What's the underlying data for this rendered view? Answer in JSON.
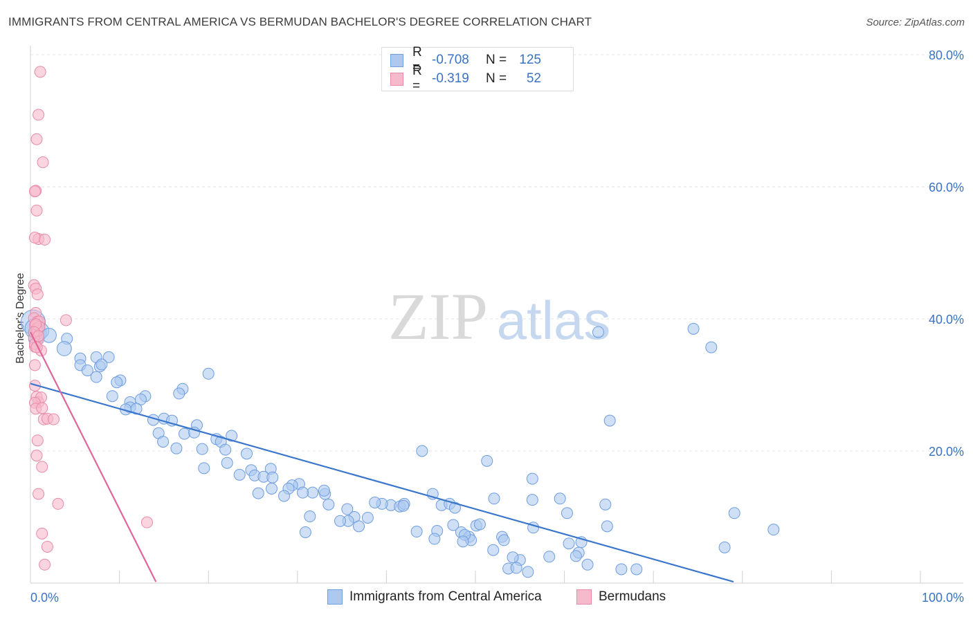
{
  "title": "IMMIGRANTS FROM CENTRAL AMERICA VS BERMUDAN BACHELOR'S DEGREE CORRELATION CHART",
  "source": "Source: ZipAtlas.com",
  "watermark": {
    "zip": "ZIP",
    "atlas": "atlas"
  },
  "legend": {
    "rows": [
      {
        "r_label": "R =",
        "r_value": "-0.708",
        "n_label": "N =",
        "n_value": "125",
        "fill": "#aec9f0",
        "stroke": "#6e9de0"
      },
      {
        "r_label": "R =",
        "r_value": "-0.319",
        "n_label": "N =",
        "n_value": "52",
        "fill": "#f7b9cc",
        "stroke": "#e88aa8"
      }
    ]
  },
  "bottom_legend": [
    {
      "label": "Immigrants from Central America",
      "fill": "#aec9f0",
      "stroke": "#6e9de0"
    },
    {
      "label": "Bermudans",
      "fill": "#f7b9cc",
      "stroke": "#e88aa8"
    }
  ],
  "chart_data": {
    "type": "scatter",
    "title": "IMMIGRANTS FROM CENTRAL AMERICA VS BERMUDAN BACHELOR'S DEGREE CORRELATION CHART",
    "xlabel": "",
    "ylabel": "Bachelor's Degree",
    "xlim": [
      0,
      100
    ],
    "ylim": [
      0,
      80
    ],
    "x_tick_labels": [
      "0.0%",
      "100.0%"
    ],
    "y_ticks": [
      20,
      40,
      60,
      80
    ],
    "y_tick_labels": [
      "20.0%",
      "40.0%",
      "60.0%",
      "80.0%"
    ],
    "grid": true,
    "series": [
      {
        "name": "Immigrants from Central America",
        "color": "#6e9de0",
        "fill": "#aec9f0",
        "trend": {
          "x": [
            0,
            79
          ],
          "y": [
            30.2,
            0.2
          ],
          "color": "#3a76cc"
        },
        "points": [
          [
            0.3,
            39.5,
            2.2
          ],
          [
            0.5,
            38.5,
            1.8
          ],
          [
            0.8,
            37.8,
            1.6
          ],
          [
            1.2,
            38.2,
            1.4
          ],
          [
            0.6,
            37.0,
            1.3
          ],
          [
            2.1,
            37.5,
            1.3
          ],
          [
            4.1,
            37.0,
            1.0
          ],
          [
            3.8,
            35.5,
            1.3
          ],
          [
            5.6,
            34.0,
            1.0
          ],
          [
            7.4,
            34.2,
            1.0
          ],
          [
            8.8,
            34.2,
            1.0
          ],
          [
            5.6,
            33.0,
            1.0
          ],
          [
            7.8,
            32.8,
            1.0
          ],
          [
            8.0,
            33.1,
            1.0
          ],
          [
            6.4,
            32.2,
            1.0
          ],
          [
            7.4,
            31.2,
            1.0
          ],
          [
            10.1,
            30.7,
            1.0
          ],
          [
            9.7,
            30.4,
            1.0
          ],
          [
            20.0,
            31.7,
            1.0
          ],
          [
            17.1,
            29.4,
            1.0
          ],
          [
            16.7,
            28.7,
            1.0
          ],
          [
            9.2,
            28.3,
            1.0
          ],
          [
            12.9,
            28.3,
            1.0
          ],
          [
            12.4,
            27.8,
            1.0
          ],
          [
            11.2,
            27.4,
            1.0
          ],
          [
            11.2,
            26.6,
            1.0
          ],
          [
            10.7,
            26.3,
            1.0
          ],
          [
            11.9,
            26.4,
            1.0
          ],
          [
            15.0,
            24.9,
            1.0
          ],
          [
            15.9,
            24.6,
            1.0
          ],
          [
            13.8,
            24.7,
            1.0
          ],
          [
            18.7,
            23.9,
            1.0
          ],
          [
            14.4,
            22.7,
            1.0
          ],
          [
            17.3,
            22.6,
            1.0
          ],
          [
            18.4,
            22.8,
            1.0
          ],
          [
            22.6,
            22.3,
            1.0
          ],
          [
            20.9,
            21.8,
            1.0
          ],
          [
            21.4,
            21.4,
            1.0
          ],
          [
            14.9,
            21.4,
            1.0
          ],
          [
            16.4,
            20.4,
            1.0
          ],
          [
            19.3,
            20.3,
            1.0
          ],
          [
            21.9,
            20.2,
            1.0
          ],
          [
            24.3,
            19.6,
            1.0
          ],
          [
            22.1,
            18.2,
            1.0
          ],
          [
            19.5,
            17.4,
            1.0
          ],
          [
            27.0,
            17.3,
            1.0
          ],
          [
            24.8,
            17.1,
            1.0
          ],
          [
            25.2,
            16.3,
            1.0
          ],
          [
            23.5,
            16.4,
            1.0
          ],
          [
            26.2,
            16.1,
            1.0
          ],
          [
            27.2,
            16.0,
            1.0
          ],
          [
            30.2,
            15.0,
            1.0
          ],
          [
            29.4,
            14.8,
            1.0
          ],
          [
            27.1,
            14.3,
            1.0
          ],
          [
            29.0,
            14.3,
            1.0
          ],
          [
            25.6,
            13.6,
            1.0
          ],
          [
            31.7,
            13.7,
            1.0
          ],
          [
            30.6,
            13.7,
            1.0
          ],
          [
            33.1,
            13.5,
            1.0
          ],
          [
            33.0,
            14.0,
            1.0
          ],
          [
            28.5,
            13.2,
            1.0
          ],
          [
            33.5,
            11.9,
            1.0
          ],
          [
            35.6,
            11.2,
            1.0
          ],
          [
            36.4,
            10.0,
            1.0
          ],
          [
            35.7,
            9.4,
            1.0
          ],
          [
            34.8,
            9.4,
            1.0
          ],
          [
            37.9,
            9.9,
            1.0
          ],
          [
            36.9,
            8.6,
            1.0
          ],
          [
            31.4,
            10.1,
            1.0
          ],
          [
            30.9,
            7.7,
            1.0
          ],
          [
            40.5,
            11.8,
            1.0
          ],
          [
            39.5,
            12.0,
            1.0
          ],
          [
            38.7,
            12.2,
            1.0
          ],
          [
            41.5,
            11.6,
            1.0
          ],
          [
            42.0,
            12.0,
            1.0
          ],
          [
            41.9,
            11.7,
            1.0
          ],
          [
            45.2,
            13.5,
            1.0
          ],
          [
            46.2,
            11.8,
            1.0
          ],
          [
            47.1,
            12.0,
            1.0
          ],
          [
            44.0,
            20.0,
            1.0
          ],
          [
            47.5,
            8.8,
            1.0
          ],
          [
            48.4,
            7.7,
            1.0
          ],
          [
            49.3,
            7.0,
            1.0
          ],
          [
            50.1,
            8.7,
            1.0
          ],
          [
            49.5,
            6.5,
            1.0
          ],
          [
            47.7,
            11.4,
            1.0
          ],
          [
            43.4,
            7.8,
            1.0
          ],
          [
            45.7,
            7.9,
            1.0
          ],
          [
            48.8,
            7.3,
            1.0
          ],
          [
            45.4,
            6.7,
            1.0
          ],
          [
            48.6,
            6.3,
            1.0
          ],
          [
            52.1,
            12.8,
            1.0
          ],
          [
            50.5,
            8.9,
            1.0
          ],
          [
            53.0,
            7.0,
            1.0
          ],
          [
            53.2,
            6.5,
            1.0
          ],
          [
            52.0,
            5.0,
            1.0
          ],
          [
            56.4,
            12.6,
            1.0
          ],
          [
            56.5,
            8.4,
            1.0
          ],
          [
            56.4,
            15.8,
            1.0
          ],
          [
            59.5,
            12.8,
            1.0
          ],
          [
            58.3,
            4.0,
            1.0
          ],
          [
            61.9,
            6.2,
            1.0
          ],
          [
            61.6,
            4.6,
            1.0
          ],
          [
            62.6,
            2.8,
            1.0
          ],
          [
            61.3,
            4.1,
            1.0
          ],
          [
            60.5,
            6.0,
            1.0
          ],
          [
            55.0,
            3.5,
            1.0
          ],
          [
            54.2,
            3.9,
            1.0
          ],
          [
            53.7,
            2.2,
            1.0
          ],
          [
            54.6,
            2.3,
            1.0
          ],
          [
            55.9,
            1.7,
            1.0
          ],
          [
            51.3,
            18.5,
            1.0
          ],
          [
            60.3,
            10.6,
            1.0
          ],
          [
            64.6,
            11.9,
            1.0
          ],
          [
            64.8,
            8.6,
            1.0
          ],
          [
            66.4,
            2.1,
            1.0
          ],
          [
            68.1,
            2.1,
            1.0
          ],
          [
            65.1,
            24.6,
            1.0
          ],
          [
            63.8,
            38.0,
            1.0
          ],
          [
            74.5,
            38.5,
            1.0
          ],
          [
            76.5,
            35.7,
            1.0
          ],
          [
            78.0,
            5.4,
            1.0
          ],
          [
            79.1,
            10.6,
            1.0
          ],
          [
            83.5,
            8.1,
            1.0
          ]
        ]
      },
      {
        "name": "Bermudans",
        "color": "#e88aa8",
        "fill": "#f7b9cc",
        "trend": {
          "x": [
            0,
            14.1
          ],
          "y": [
            38.0,
            0.2
          ],
          "color": "#e0659a"
        },
        "points": [
          [
            1.1,
            77.4,
            1.0
          ],
          [
            0.9,
            70.9,
            1.0
          ],
          [
            0.7,
            67.2,
            1.0
          ],
          [
            1.4,
            63.7,
            1.0
          ],
          [
            0.6,
            59.4,
            1.0
          ],
          [
            0.5,
            59.3,
            1.0
          ],
          [
            0.7,
            56.4,
            1.0
          ],
          [
            0.9,
            52.1,
            1.0
          ],
          [
            0.5,
            52.3,
            1.0
          ],
          [
            1.6,
            52.0,
            1.0
          ],
          [
            0.4,
            45.1,
            1.0
          ],
          [
            0.6,
            44.6,
            1.0
          ],
          [
            0.8,
            43.7,
            1.0
          ],
          [
            0.6,
            40.9,
            1.0
          ],
          [
            0.4,
            40.1,
            1.0
          ],
          [
            0.8,
            39.6,
            1.0
          ],
          [
            1.0,
            39.6,
            1.0
          ],
          [
            0.5,
            39.0,
            1.0
          ],
          [
            0.7,
            38.5,
            1.0
          ],
          [
            0.6,
            37.8,
            1.0
          ],
          [
            0.9,
            36.9,
            1.0
          ],
          [
            0.5,
            35.8,
            1.0
          ],
          [
            1.2,
            35.2,
            1.0
          ],
          [
            0.5,
            33.0,
            1.0
          ],
          [
            0.5,
            29.9,
            1.0
          ],
          [
            0.7,
            28.2,
            1.0
          ],
          [
            0.9,
            27.4,
            1.0
          ],
          [
            1.2,
            28.1,
            1.0
          ],
          [
            0.5,
            27.3,
            1.0
          ],
          [
            0.6,
            26.4,
            1.0
          ],
          [
            1.3,
            26.5,
            1.0
          ],
          [
            1.5,
            24.8,
            1.0
          ],
          [
            1.9,
            24.9,
            1.0
          ],
          [
            2.6,
            24.8,
            1.0
          ],
          [
            0.8,
            21.6,
            1.0
          ],
          [
            0.7,
            19.3,
            1.0
          ],
          [
            1.3,
            17.6,
            1.0
          ],
          [
            0.9,
            13.5,
            1.0
          ],
          [
            3.1,
            12.0,
            1.0
          ],
          [
            13.1,
            9.2,
            1.0
          ],
          [
            1.3,
            7.5,
            1.0
          ],
          [
            1.9,
            5.5,
            1.0
          ],
          [
            1.6,
            2.8,
            1.0
          ],
          [
            4.0,
            39.8,
            1.0
          ],
          [
            0.4,
            37.2,
            1.0
          ],
          [
            0.8,
            38.2,
            1.0
          ],
          [
            0.5,
            36.2,
            1.0
          ],
          [
            1.0,
            38.8,
            1.0
          ],
          [
            0.6,
            39.2,
            1.0
          ],
          [
            0.4,
            38.0,
            1.0
          ],
          [
            0.9,
            37.4,
            1.0
          ],
          [
            0.7,
            35.7,
            1.0
          ]
        ]
      }
    ]
  }
}
